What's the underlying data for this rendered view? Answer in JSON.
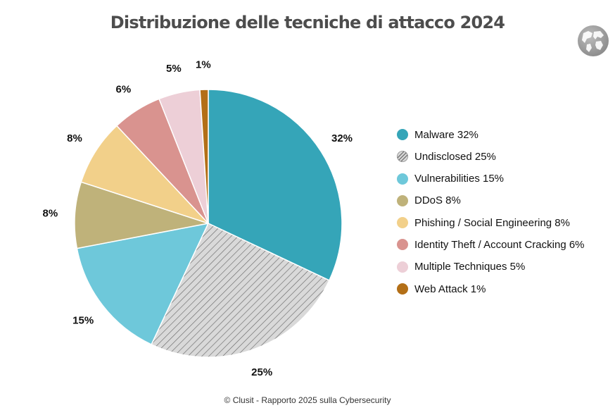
{
  "chart_data": {
    "type": "pie",
    "title": "Distribuzione delle tecniche di attacco 2024",
    "categories": [
      "Malware",
      "Undisclosed",
      "Vulnerabilities",
      "DDoS",
      "Phishing / Social Engineering",
      "Identity Theft / Account Cracking",
      "Multiple Techniques",
      "Web Attack"
    ],
    "values": [
      32,
      25,
      15,
      8,
      8,
      6,
      5,
      1
    ],
    "value_labels": [
      "32%",
      "25%",
      "15%",
      "8%",
      "8%",
      "6%",
      "5%",
      "1%"
    ],
    "legend_labels": [
      "Malware 32%",
      "Undisclosed 25%",
      "Vulnerabilities 15%",
      "DDoS 8%",
      "Phishing / Social Engineering 8%",
      "Identity Theft / Account Cracking 6%",
      "Multiple Techniques 5%",
      "Web Attack 1%"
    ],
    "colors": [
      "#35a5b8",
      "#d9d9d9",
      "#6ec8da",
      "#bfb27a",
      "#f2d08a",
      "#d9938f",
      "#edcfd7",
      "#b36f17"
    ],
    "hatched": [
      false,
      true,
      false,
      false,
      false,
      false,
      false,
      false
    ],
    "legend_position": "right",
    "unit": "%"
  },
  "footer": "© Clusit - Rapporto 2025 sulla Cybersecurity",
  "icons": {
    "logo": "globe-icon"
  }
}
